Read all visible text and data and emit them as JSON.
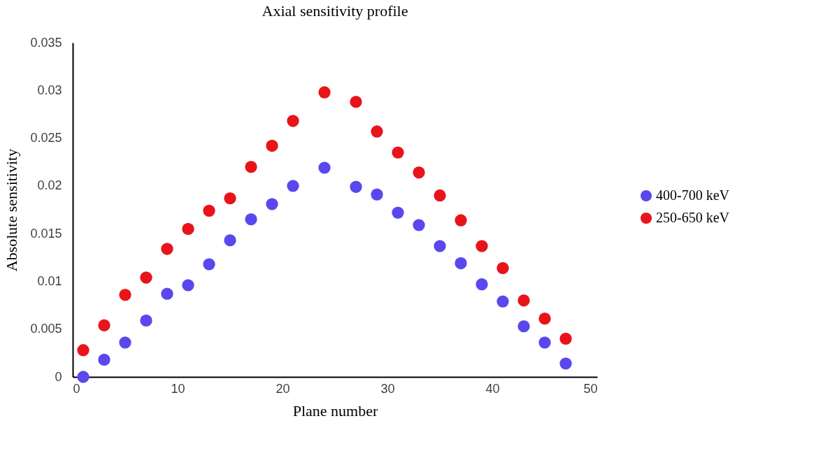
{
  "chart_data": {
    "type": "scatter",
    "title": "Axial sensitivity profile",
    "xlabel": "Plane number",
    "ylabel": "Absolute sensitivity",
    "x": [
      1,
      3,
      5,
      7,
      9,
      11,
      13,
      15,
      17,
      19,
      21,
      24,
      27,
      29,
      31,
      33,
      35,
      37,
      39,
      41,
      43,
      45,
      47
    ],
    "series": [
      {
        "name": "400-700 keV",
        "color": "#5a48ee",
        "values": [
          0.0,
          0.0018,
          0.0036,
          0.0059,
          0.0087,
          0.0096,
          0.0118,
          0.0143,
          0.0165,
          0.0181,
          0.02,
          0.0219,
          0.0199,
          0.0191,
          0.0172,
          0.0159,
          0.0137,
          0.0119,
          0.0097,
          0.0079,
          0.0053,
          0.0036,
          0.0014
        ]
      },
      {
        "name": "250-650 keV",
        "color": "#e8141a",
        "values": [
          0.0028,
          0.0054,
          0.0086,
          0.0104,
          0.0134,
          0.0155,
          0.0174,
          0.0187,
          0.022,
          0.0242,
          0.0268,
          0.0298,
          0.0288,
          0.0257,
          0.0235,
          0.0214,
          0.019,
          0.0164,
          0.0137,
          0.0114,
          0.008,
          0.0061,
          0.004
        ]
      }
    ],
    "xlim": [
      0,
      50
    ],
    "xticks": [
      0,
      10,
      20,
      30,
      40,
      50
    ],
    "ylim": [
      0,
      0.035
    ],
    "yticks": [
      0,
      0.005,
      0.01,
      0.015,
      0.02,
      0.025,
      0.03,
      0.035
    ],
    "grid": false,
    "legend": "right",
    "marker": "circle"
  }
}
